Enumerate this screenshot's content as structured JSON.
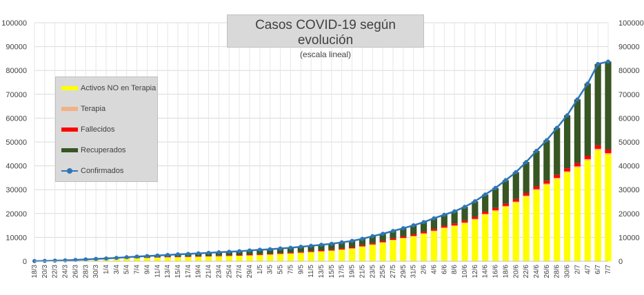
{
  "chart_data": {
    "type": "bar",
    "stacked": true,
    "title": "Casos COVID-19 según evolución",
    "subtitle": "(escala lineal)",
    "ylim": [
      0,
      100000
    ],
    "yticks": [
      "0",
      "10000",
      "20000",
      "30000",
      "40000",
      "50000",
      "60000",
      "70000",
      "80000",
      "90000",
      "100000"
    ],
    "grid": true,
    "legend_position": "left",
    "categories": [
      "18/3",
      "20/3",
      "22/3",
      "24/3",
      "26/3",
      "28/3",
      "30/3",
      "1/4",
      "3/4",
      "5/4",
      "7/4",
      "9/4",
      "11/4",
      "13/4",
      "15/4",
      "17/4",
      "19/4",
      "21/4",
      "23/4",
      "25/4",
      "27/4",
      "29/4",
      "1/5",
      "3/5",
      "5/5",
      "7/5",
      "9/5",
      "11/5",
      "13/5",
      "15/5",
      "17/5",
      "19/5",
      "21/5",
      "23/5",
      "25/5",
      "27/5",
      "29/5",
      "31/5",
      "2/6",
      "4/6",
      "6/6",
      "8/6",
      "10/6",
      "12/6",
      "14/6",
      "16/6",
      "18/6",
      "20/6",
      "22/6",
      "24/6",
      "26/6",
      "28/6",
      "30/6",
      "2/7",
      "4/7",
      "6/7",
      "7/7"
    ],
    "series": [
      {
        "name": "Activos NO en Terapia",
        "color": "#ffff00",
        "values": [
          60,
          150,
          230,
          330,
          480,
          650,
          800,
          900,
          1000,
          1100,
          1200,
          1300,
          1400,
          1500,
          1550,
          1650,
          1750,
          1850,
          1950,
          2050,
          2150,
          2300,
          2450,
          2650,
          2900,
          3100,
          3400,
          3700,
          4000,
          4300,
          4700,
          5200,
          6000,
          6800,
          7700,
          8700,
          9500,
          10300,
          11400,
          12500,
          13800,
          14700,
          15900,
          17400,
          19500,
          21000,
          22800,
          24600,
          27100,
          29800,
          32100,
          34500,
          37200,
          39300,
          42300,
          46600,
          44800
        ]
      },
      {
        "name": "Terapia",
        "color": "#f4b183",
        "values": [
          0,
          5,
          10,
          15,
          30,
          50,
          70,
          90,
          110,
          130,
          150,
          160,
          170,
          180,
          180,
          180,
          180,
          180,
          180,
          180,
          180,
          180,
          180,
          180,
          180,
          190,
          190,
          200,
          200,
          210,
          220,
          230,
          240,
          250,
          260,
          270,
          280,
          290,
          300,
          310,
          320,
          330,
          340,
          350,
          360,
          370,
          380,
          390,
          400,
          420,
          440,
          460,
          480,
          500,
          520,
          540,
          540
        ]
      },
      {
        "name": "Fallecidos",
        "color": "#ff0000",
        "values": [
          1,
          2,
          4,
          10,
          20,
          30,
          40,
          60,
          80,
          100,
          120,
          140,
          160,
          180,
          200,
          210,
          220,
          230,
          240,
          260,
          270,
          280,
          300,
          320,
          340,
          360,
          380,
          400,
          420,
          440,
          460,
          490,
          520,
          550,
          580,
          610,
          640,
          670,
          700,
          740,
          770,
          800,
          840,
          880,
          920,
          960,
          1000,
          1050,
          1100,
          1150,
          1200,
          1250,
          1300,
          1350,
          1400,
          1450,
          1490
        ]
      },
      {
        "name": "Recuperados",
        "color": "#375623",
        "values": [
          0,
          0,
          0,
          5,
          20,
          30,
          60,
          120,
          230,
          350,
          470,
          570,
          670,
          770,
          950,
          1030,
          1150,
          1260,
          1370,
          1490,
          1600,
          1740,
          1860,
          1880,
          1920,
          2000,
          2100,
          2150,
          2280,
          2350,
          2550,
          2600,
          2640,
          2900,
          2950,
          3100,
          3400,
          3800,
          4000,
          4450,
          4600,
          5070,
          5700,
          6500,
          7200,
          8400,
          9800,
          11300,
          13000,
          14900,
          17000,
          19700,
          22200,
          26700,
          30300,
          34100,
          36900
        ]
      }
    ],
    "line_series": {
      "name": "Confirmados",
      "color": "#2e75b6",
      "values": [
        61,
        157,
        244,
        360,
        550,
        760,
        970,
        1170,
        1420,
        1680,
        1940,
        2170,
        2400,
        2630,
        2880,
        3070,
        3300,
        3520,
        3740,
        3980,
        4200,
        4500,
        4790,
        5030,
        5340,
        5650,
        6070,
        6450,
        6900,
        7300,
        7930,
        8520,
        9400,
        10500,
        11490,
        12680,
        13820,
        15060,
        16400,
        18000,
        19490,
        20900,
        22780,
        25130,
        27980,
        30730,
        33980,
        37340,
        41600,
        46270,
        50740,
        55910,
        61180,
        67850,
        74520,
        82690,
        83720
      ]
    }
  }
}
